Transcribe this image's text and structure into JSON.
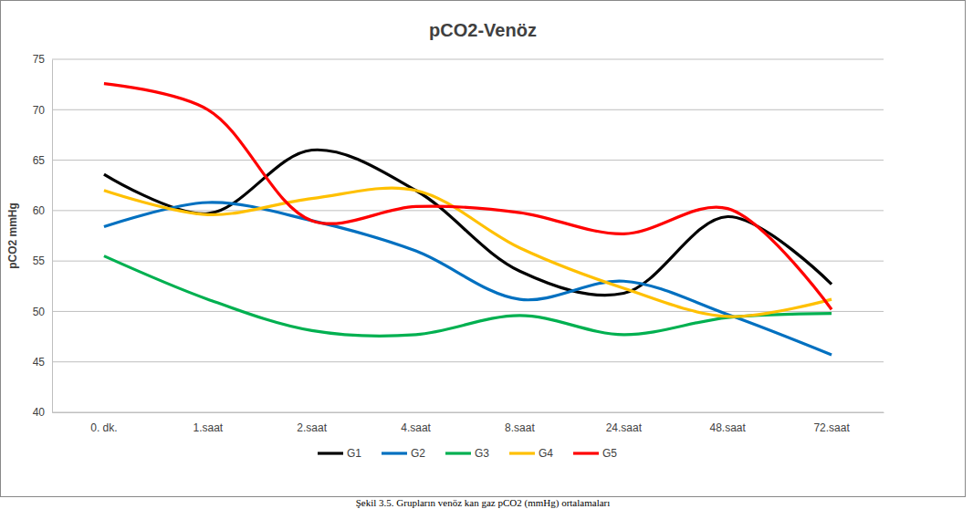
{
  "chart_data": {
    "type": "line",
    "title": "pCO2-Venöz",
    "y_label": "pCO2 mmHg",
    "caption": "Şekil 3.5. Grupların venöz kan gaz pCO2 (mmHg) ortalamaları",
    "categories": [
      "0. dk.",
      "1.saat",
      "2.saat",
      "4.saat",
      "8.saat",
      "24.saat",
      "48.saat",
      "72.saat"
    ],
    "series": [
      {
        "name": "G1",
        "color": "#000000",
        "values": [
          63.6,
          59.7,
          66.0,
          62.0,
          54.0,
          51.8,
          59.4,
          52.7
        ]
      },
      {
        "name": "G2",
        "color": "#0070c0",
        "values": [
          58.4,
          60.8,
          59.0,
          56.0,
          51.2,
          53.0,
          49.7,
          45.7
        ]
      },
      {
        "name": "G3",
        "color": "#00b050",
        "values": [
          55.5,
          51.2,
          48.1,
          47.7,
          49.6,
          47.7,
          49.4,
          49.8
        ]
      },
      {
        "name": "G4",
        "color": "#ffc000",
        "values": [
          62.0,
          59.6,
          61.2,
          62.0,
          56.3,
          52.3,
          49.5,
          51.2
        ]
      },
      {
        "name": "G5",
        "color": "#ff0000",
        "values": [
          72.6,
          70.0,
          59.0,
          60.4,
          59.8,
          57.7,
          60.2,
          50.2
        ]
      }
    ],
    "ylim": [
      40,
      75
    ],
    "yticks": [
      40,
      45,
      50,
      55,
      60,
      65,
      70,
      75
    ],
    "grid": true,
    "legend": "bottom",
    "line_style": "smooth"
  }
}
